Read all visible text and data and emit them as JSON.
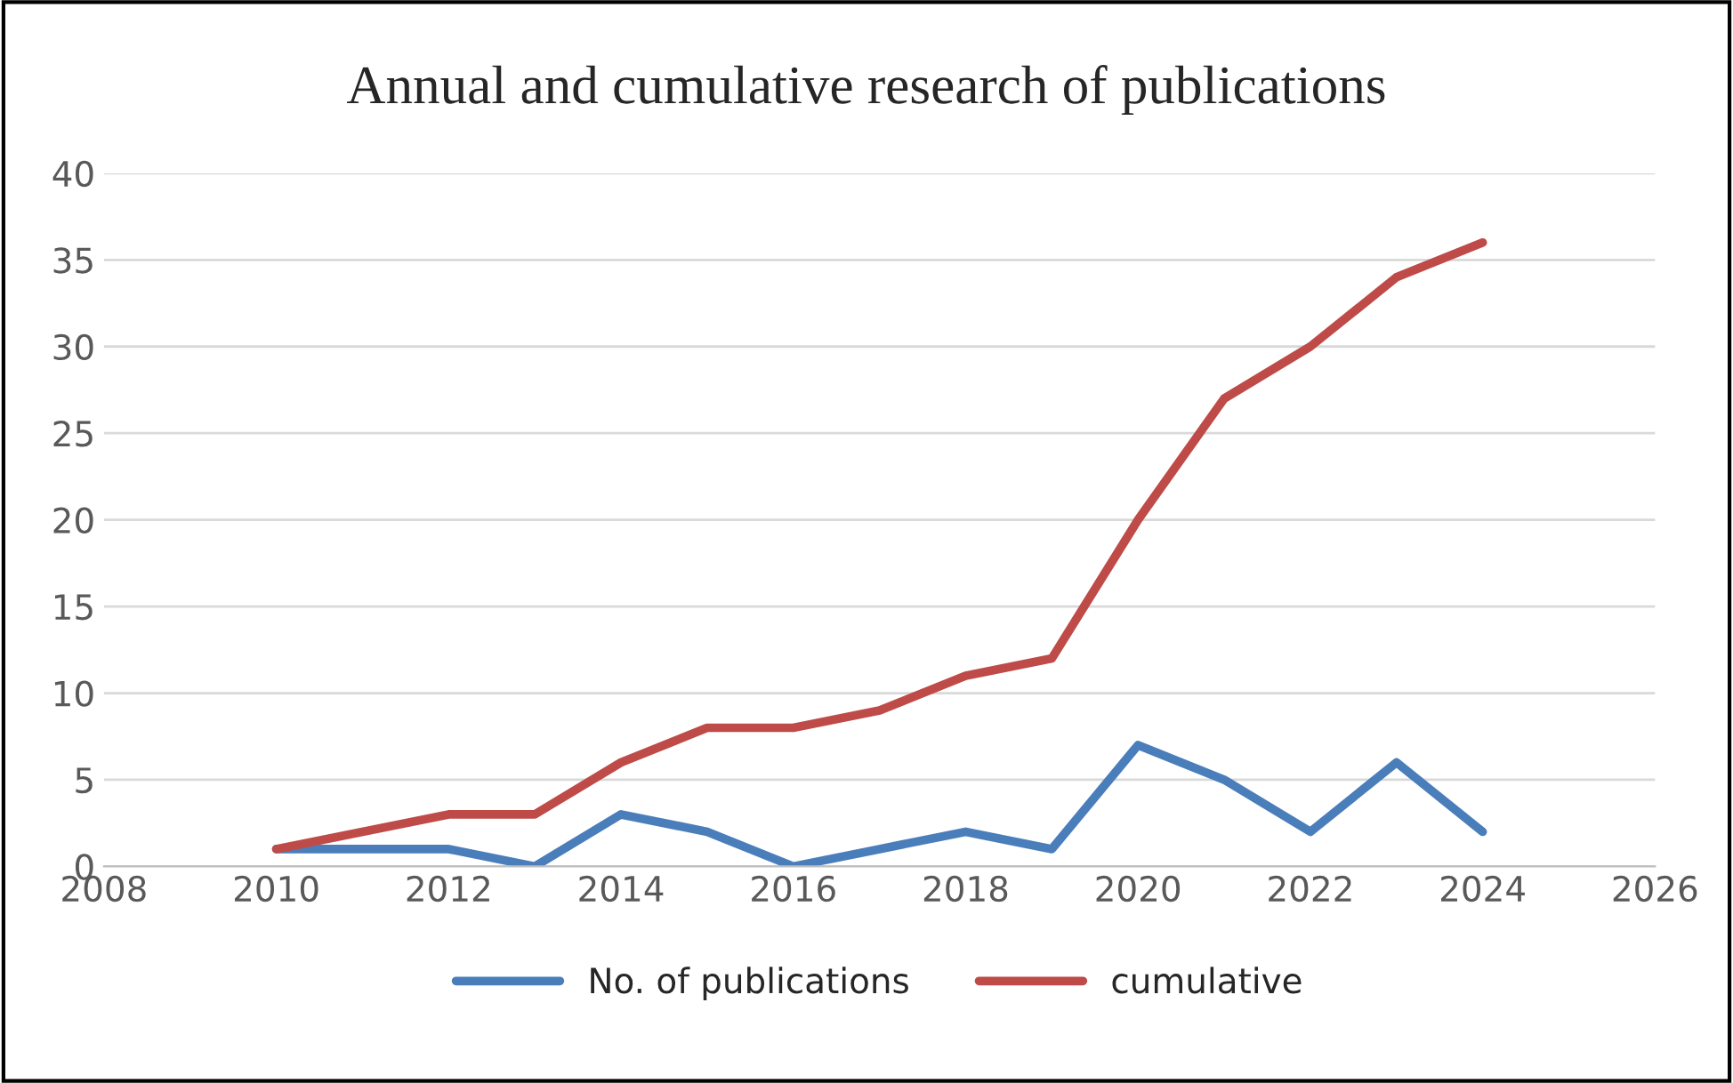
{
  "chart_data": {
    "type": "line",
    "title": "Annual and cumulative research of publications",
    "x": [
      2010,
      2011,
      2012,
      2013,
      2014,
      2015,
      2016,
      2017,
      2018,
      2019,
      2020,
      2021,
      2022,
      2023,
      2024
    ],
    "series": [
      {
        "name": "No. of publications",
        "color": "#4a7ebb",
        "values": [
          1,
          1,
          1,
          0,
          3,
          2,
          0,
          1,
          2,
          1,
          7,
          5,
          2,
          6,
          2
        ]
      },
      {
        "name": "cumulative",
        "color": "#be4b48",
        "values": [
          1,
          2,
          3,
          3,
          6,
          8,
          8,
          9,
          11,
          12,
          20,
          27,
          30,
          34,
          36
        ]
      }
    ],
    "xlim": [
      2008,
      2026
    ],
    "xticks": [
      2008,
      2010,
      2012,
      2014,
      2016,
      2018,
      2020,
      2022,
      2024,
      2026
    ],
    "ylim": [
      0,
      40
    ],
    "yticks": [
      0,
      5,
      10,
      15,
      20,
      25,
      30,
      35,
      40
    ],
    "grid": "y",
    "legend": "bottom",
    "marker": "none",
    "line_style": "solid"
  }
}
